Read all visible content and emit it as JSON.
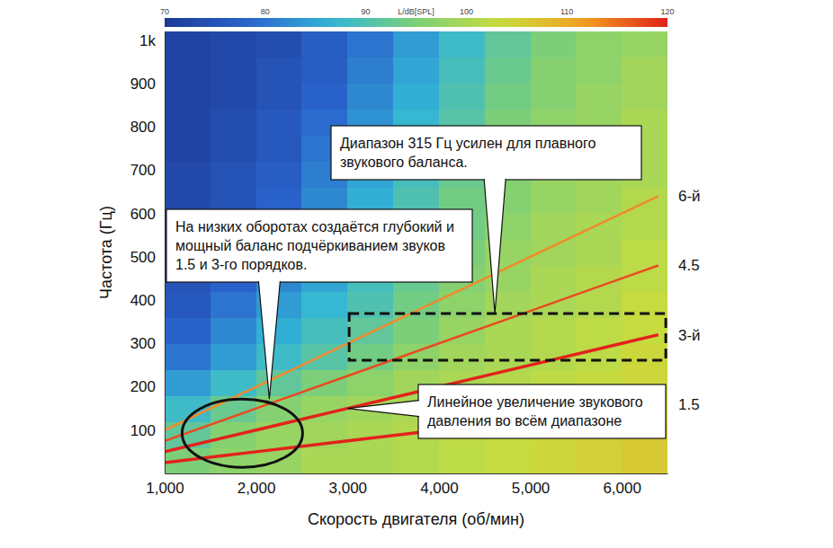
{
  "chart_data": {
    "type": "heatmap",
    "x_label": "Скорость двигателя (об/мин)",
    "y_label": "Частота (Гц)",
    "xlim": [
      1000,
      6500
    ],
    "xticks": [
      {
        "value": 1000,
        "label": "1,000"
      },
      {
        "value": 2000,
        "label": "2,000"
      },
      {
        "value": 3000,
        "label": "3,000"
      },
      {
        "value": 4000,
        "label": "4,000"
      },
      {
        "value": 5000,
        "label": "5,000"
      },
      {
        "value": 6000,
        "label": "6,000"
      }
    ],
    "ylim": [
      0,
      1020
    ],
    "yticks": [
      100,
      200,
      300,
      400,
      500,
      600,
      700,
      800,
      900,
      {
        "value": 1000,
        "label": "1k"
      }
    ],
    "color_label": "L/dB[SPL]",
    "color_range": [
      70,
      120
    ],
    "color_ticks": [
      70,
      80,
      90,
      100,
      110,
      120
    ],
    "x_bins": [
      1000,
      1500,
      2000,
      2500,
      3000,
      3500,
      4000,
      4500,
      5000,
      5500,
      6000,
      6500
    ],
    "y_bins": [
      0,
      60,
      120,
      180,
      240,
      300,
      360,
      420,
      480,
      540,
      600,
      660,
      720,
      780,
      840,
      900,
      960,
      1020
    ],
    "cells": [
      [
        95,
        97,
        98,
        100,
        100,
        101,
        102,
        103,
        104,
        105,
        106
      ],
      [
        92,
        96,
        98,
        99,
        100,
        101,
        102,
        103,
        104,
        105,
        106
      ],
      [
        88,
        93,
        96,
        98,
        99,
        100,
        101,
        102,
        103,
        104,
        105
      ],
      [
        84,
        88,
        92,
        95,
        97,
        99,
        100,
        101,
        102,
        103,
        104
      ],
      [
        80,
        84,
        88,
        91,
        94,
        97,
        99,
        100,
        101,
        102,
        104
      ],
      [
        78,
        82,
        86,
        89,
        92,
        95,
        98,
        100,
        101,
        102,
        103
      ],
      [
        76,
        80,
        84,
        87,
        90,
        94,
        97,
        99,
        100,
        101,
        103
      ],
      [
        75,
        78,
        82,
        85,
        89,
        93,
        96,
        98,
        100,
        101,
        102
      ],
      [
        74,
        77,
        80,
        84,
        88,
        92,
        95,
        98,
        99,
        100,
        102
      ],
      [
        74,
        76,
        79,
        83,
        87,
        91,
        94,
        97,
        99,
        100,
        101
      ],
      [
        73,
        75,
        78,
        82,
        86,
        90,
        94,
        96,
        98,
        99,
        101
      ],
      [
        73,
        75,
        77,
        81,
        85,
        89,
        93,
        96,
        98,
        99,
        100
      ],
      [
        72,
        74,
        76,
        80,
        84,
        88,
        92,
        95,
        97,
        99,
        100
      ],
      [
        72,
        74,
        76,
        79,
        83,
        87,
        91,
        95,
        97,
        98,
        100
      ],
      [
        72,
        73,
        75,
        78,
        82,
        86,
        90,
        94,
        96,
        98,
        99
      ],
      [
        72,
        73,
        75,
        77,
        81,
        85,
        89,
        93,
        96,
        97,
        99
      ],
      [
        72,
        73,
        74,
        77,
        80,
        84,
        88,
        92,
        95,
        97,
        98
      ]
    ],
    "x": [
      1000,
      2000,
      3000,
      4000,
      5000,
      6000,
      6400
    ],
    "series": [
      {
        "name": "1.5",
        "type": "line",
        "color": "#e3221b",
        "values": [
          25,
          50,
          75,
          100,
          125,
          150,
          160
        ]
      },
      {
        "name": "3-й",
        "type": "line",
        "color": "#e3221b",
        "values": [
          50,
          100,
          150,
          200,
          250,
          300,
          320
        ]
      },
      {
        "name": "4.5",
        "type": "line",
        "color": "#ea4a22",
        "values": [
          75,
          150,
          225,
          300,
          375,
          450,
          480
        ]
      },
      {
        "name": "6-й",
        "type": "line",
        "color": "#f08a2c",
        "values": [
          100,
          200,
          300,
          400,
          500,
          600,
          640
        ]
      }
    ],
    "annotations": [
      {
        "text": "На низких оборотах создаётся глубокий и мощный баланс подчёркиванием звуков 1.5 и 3-го порядков.",
        "x": 1850,
        "y": 93
      },
      {
        "text": "Диапазон 315 Гц усилен для плавного звукового баланса.",
        "x": 4750,
        "y": 315
      },
      {
        "text": "Линейное увеличение звукового давления во всём диапазоне",
        "x": 3000,
        "y": 150
      }
    ]
  }
}
